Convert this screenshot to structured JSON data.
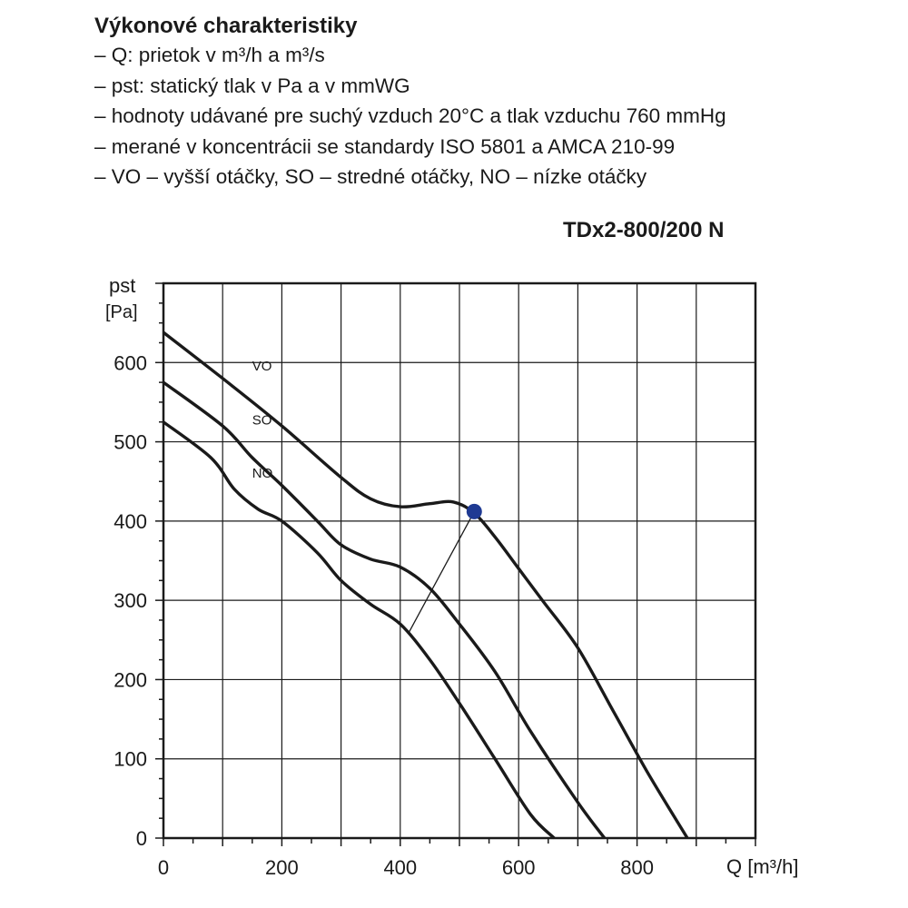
{
  "header": {
    "title": "Výkonové charakteristiky",
    "lines": [
      "– Q: prietok v m³/h a m³/s",
      "– pst: statický tlak v Pa a v mmWG",
      "– hodnoty udávané  pre suchý vzduch 20°C a tlak vzduchu 760 mmHg",
      "– merané v koncentrácii se standardy ISO 5801 a AMCA 210-99",
      "– VO – vyšší otáčky, SO – stredné otáčky, NO – nízke otáčky"
    ]
  },
  "chart_data": {
    "type": "line",
    "title": "TDx2-800/200 N",
    "xlabel": "Q [m³/h]",
    "ylabel_line1": "pst",
    "ylabel_line2": "[Pa]",
    "xlim": [
      0,
      1000
    ],
    "ylim": [
      0,
      700
    ],
    "x_ticks": [
      0,
      200,
      400,
      600,
      800
    ],
    "y_ticks": [
      0,
      100,
      200,
      300,
      400,
      500,
      600
    ],
    "grid": true,
    "series": [
      {
        "name": "VO",
        "points": [
          [
            0,
            638
          ],
          [
            100,
            580
          ],
          [
            200,
            520
          ],
          [
            300,
            455
          ],
          [
            350,
            428
          ],
          [
            400,
            418
          ],
          [
            450,
            422
          ],
          [
            490,
            424
          ],
          [
            525,
            410
          ],
          [
            560,
            380
          ],
          [
            600,
            340
          ],
          [
            640,
            300
          ],
          [
            700,
            240
          ],
          [
            760,
            160
          ],
          [
            820,
            80
          ],
          [
            885,
            0
          ]
        ]
      },
      {
        "name": "SO",
        "points": [
          [
            0,
            575
          ],
          [
            100,
            520
          ],
          [
            150,
            480
          ],
          [
            200,
            445
          ],
          [
            260,
            400
          ],
          [
            300,
            370
          ],
          [
            350,
            352
          ],
          [
            400,
            342
          ],
          [
            450,
            315
          ],
          [
            500,
            270
          ],
          [
            560,
            210
          ],
          [
            620,
            135
          ],
          [
            700,
            45
          ],
          [
            745,
            0
          ]
        ]
      },
      {
        "name": "NO",
        "points": [
          [
            0,
            525
          ],
          [
            80,
            480
          ],
          [
            120,
            440
          ],
          [
            160,
            415
          ],
          [
            200,
            400
          ],
          [
            260,
            360
          ],
          [
            300,
            325
          ],
          [
            350,
            295
          ],
          [
            400,
            270
          ],
          [
            450,
            225
          ],
          [
            500,
            170
          ],
          [
            560,
            100
          ],
          [
            620,
            30
          ],
          [
            660,
            0
          ]
        ]
      }
    ],
    "marker": {
      "x": 525,
      "y": 412,
      "color": "#1f3a93"
    },
    "operating_line": [
      [
        525,
        412
      ],
      [
        415,
        260
      ]
    ],
    "colors": {
      "curves": "#1a1a1a",
      "grid": "#1a1a1a",
      "marker": "#1f3a93"
    }
  }
}
